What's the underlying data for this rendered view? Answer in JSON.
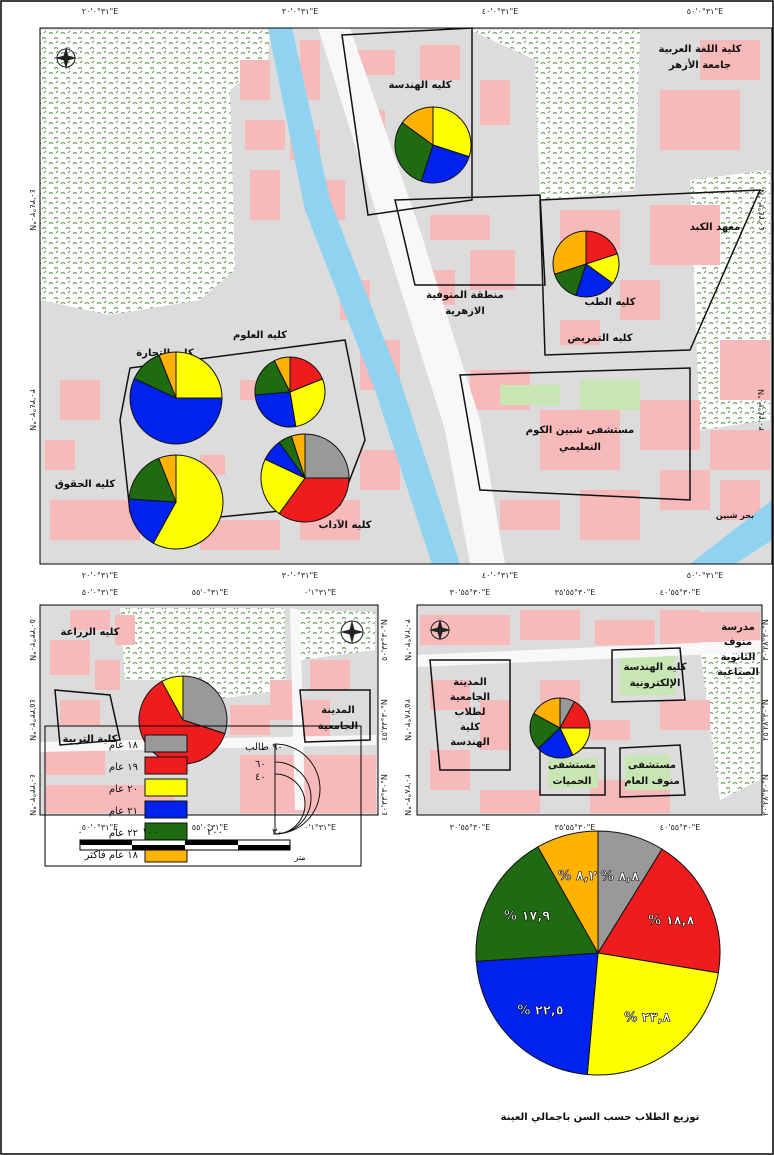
{
  "colors": {
    "age_18": "#999999",
    "age_19": "#ee1c1c",
    "age_20": "#ffff00",
    "age_21": "#0022ee",
    "age_22": "#1f6b12",
    "age_other": "#ffb300",
    "building": "#f7b9b9",
    "ground": "#dcdcdc",
    "canal": "#8fd3f0",
    "park": "#c8e6b4"
  },
  "coords": {
    "top_top": [
      "٣١°٠'٢٠\"E",
      "٣١°٠'٣٠\"E",
      "٣١°٠'٤٠\"E",
      "٣١°٠'٥٠\"E"
    ],
    "top_bottom": [
      "٣١°٠'٢٠\"E",
      "٣١°٠'٣٠\"E",
      "٣١°٠'٤٠\"E",
      "٣١°٠'٥٠\"E"
    ],
    "left_lat": [
      "٣٠°٣٤'٤٠\"N",
      "٣٠°٣٤'٣٠\"N"
    ],
    "bl_top": [
      "٣١°٠'٥٠\"E",
      "٣١°٠'٥٥\"E",
      "٣١°١'٠\"E"
    ],
    "bl_bottom": [
      "٣١°٠'٥٠\"E",
      "٣١°٠'٥٥\"E",
      "٣١°١'٠\"E"
    ],
    "bl_lat": [
      "٣٠°٣٣'٥٠\"N",
      "٣٠°٣٣'٤٥\"N",
      "٣٠°٣٣'٤٠\"N"
    ],
    "br_top": [
      "٣٠°٥٥'٣٠\"E",
      "٣٠°٥٥'٣٥\"E",
      "٣٠°٥٥'٤٠\"E"
    ],
    "br_bottom": [
      "٣٠°٥٥'٣٠\"E",
      "٣٠°٥٥'٣٥\"E",
      "٣٠°٥٥'٤٠\"E"
    ],
    "br_lat": [
      "٣٠°٢٨'٣٠\"N",
      "٣٠°٢٨'٢٥\"N",
      "٣٠°٢٨'٢٠\"N"
    ]
  },
  "labels": {
    "engineering": "كليه الهندسة",
    "arabic_lang_1": "كلية اللغة العربية",
    "arabic_lang_2": "جامعة الأزهر",
    "liver_inst": "معهد الكبد",
    "menoufia_1": "منطقة المنوفية",
    "menoufia_2": "الازهرية",
    "medicine": "كليه الطب",
    "nursing": "كليه التمريض",
    "science": "كليه العلوم",
    "commerce": "كليه التجارة",
    "law": "كليه الحقوق",
    "arts": "كليه الآداب",
    "hospital_1": "مستشفى شبين الكوم",
    "hospital_2": "التعليمي",
    "canal": "بحر شبين",
    "agriculture": "كليه الزراعة",
    "education": "كلية التربية",
    "univ_city_1": "المدينة",
    "univ_city_2": "الجامعية",
    "elec_eng_1": "كليه الهندسة",
    "elec_eng_2": "الإلكترونية",
    "eng_city": [
      "المدينة",
      "الجامعية",
      "لطلاب",
      "كلية",
      "الهندسة"
    ],
    "school": [
      "مدرسة",
      "منوف",
      "الثانوية",
      "الصناعية"
    ],
    "fever_hosp_1": "مستشفى",
    "fever_hosp_2": "الحميات",
    "menouf_hosp_1": "مستشفى",
    "menouf_hosp_2": "منوف العام"
  },
  "legend": {
    "items": [
      {
        "label": "١٨ عام",
        "color_key": "age_18"
      },
      {
        "label": "١٩ عام",
        "color_key": "age_19"
      },
      {
        "label": "٢٠ عام",
        "color_key": "age_20"
      },
      {
        "label": "٢١ عام",
        "color_key": "age_21"
      },
      {
        "label": "٢٢ عام",
        "color_key": "age_22"
      },
      {
        "label": "١٨ عام فأكثر",
        "color_key": "age_other"
      }
    ],
    "size_title": "٩٠ طالب",
    "size_values": [
      "٦٠",
      "٤٠"
    ]
  },
  "scalebar": {
    "ticks": [
      "٠",
      "١٠٠",
      "٢٠٠",
      "٣٠٠"
    ],
    "unit": "متر"
  },
  "pies": [
    {
      "id": "engineering",
      "values": [
        0,
        0,
        30,
        25,
        30,
        15
      ]
    },
    {
      "id": "medicine",
      "values": [
        0,
        20,
        15,
        20,
        15,
        30
      ]
    },
    {
      "id": "science",
      "values": [
        0,
        18,
        27,
        25,
        18,
        7
      ]
    },
    {
      "id": "commerce",
      "values": [
        0,
        0,
        25,
        57,
        12,
        6
      ]
    },
    {
      "id": "law",
      "values": [
        0,
        0,
        58,
        18,
        18,
        6
      ]
    },
    {
      "id": "arts",
      "values": [
        25,
        35,
        22,
        8,
        5,
        5
      ]
    },
    {
      "id": "education",
      "values": [
        30,
        62,
        8,
        0,
        0,
        0
      ]
    },
    {
      "id": "elec_eng",
      "values": [
        8,
        17,
        18,
        20,
        20,
        17
      ]
    }
  ],
  "chart_data": {
    "type": "pie",
    "title": "توزيع الطلاب حسب السن باجمالي العينة",
    "categories": [
      "١٨ عام",
      "١٩ عام",
      "٢٠ عام",
      "٢١ عام",
      "٢٢ عام",
      "١٨ عام فأكثر"
    ],
    "values": [
      8.8,
      18.8,
      23.8,
      22.5,
      17.9,
      8.2
    ],
    "value_labels": [
      "% ٨,٨",
      "% ١٨,٨",
      "% ٢٣,٨",
      "% ٢٢,٥",
      "% ١٧,٩",
      "% ٨,٢"
    ]
  }
}
